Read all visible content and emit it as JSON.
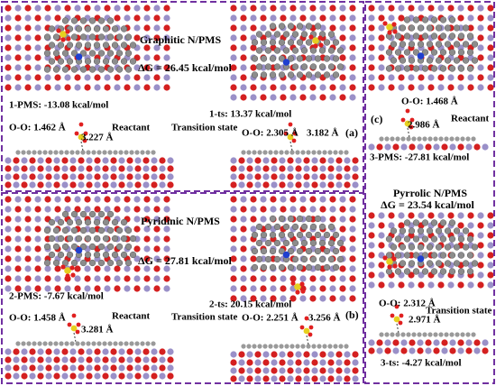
{
  "panels": [
    {
      "label": "(a)",
      "title": "Graphitic  N/PMS",
      "delta_g": "ΔG = 26.45 kcal/mol",
      "reactant": {
        "energy": "1-PMS: -13.08 kcal/mol",
        "oo": "O-O: 1.462 Å",
        "distance": "3.227 Å",
        "state": "Reactant"
      },
      "ts": {
        "energy": "1-ts: 13.37 kcal/mol",
        "oo": "O-O: 2.305 Å",
        "distance": "3.182 Å",
        "state": "Transition state"
      }
    },
    {
      "label": "(b)",
      "title": "Pyridinic  N/PMS",
      "delta_g": "ΔG = 27.81 kcal/mol",
      "reactant": {
        "energy": "2-PMS: -7.67 kcal/mol",
        "oo": "O-O: 1.458 Å",
        "distance": "3.281 Å",
        "state": "Reactant"
      },
      "ts": {
        "energy": "2-ts: 20.15 kcal/mol",
        "oo": "O-O: 2.251 Å",
        "distance": "3.256 Å",
        "state": "Transition state"
      }
    },
    {
      "label": "(c)",
      "title": "Pyrrolic  N/PMS",
      "delta_g": "ΔG = 23.54 kcal/mol",
      "reactant": {
        "energy": "3-PMS: -27.81 kcal/mol",
        "oo": "O-O: 1.468 Å",
        "distance": "2.986 Å",
        "state": "Reactant"
      },
      "ts": {
        "energy": "3-ts: -4.27 kcal/mol",
        "oo": "O-O: 2.312 Å",
        "distance": "2.971 Å",
        "state": "Transition state"
      }
    }
  ]
}
